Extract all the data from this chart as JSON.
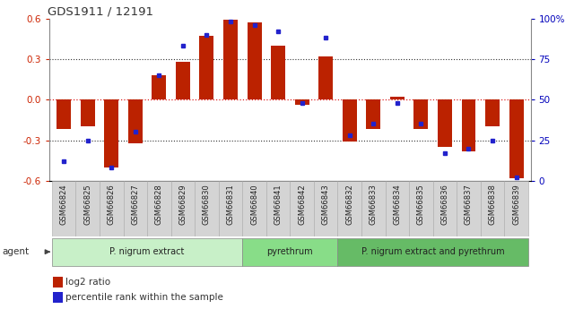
{
  "title": "GDS1911 / 12191",
  "samples": [
    "GSM66824",
    "GSM66825",
    "GSM66826",
    "GSM66827",
    "GSM66828",
    "GSM66829",
    "GSM66830",
    "GSM66831",
    "GSM66840",
    "GSM66841",
    "GSM66842",
    "GSM66843",
    "GSM66832",
    "GSM66833",
    "GSM66834",
    "GSM66835",
    "GSM66836",
    "GSM66837",
    "GSM66838",
    "GSM66839"
  ],
  "log2_ratio": [
    -0.22,
    -0.2,
    -0.5,
    -0.32,
    0.18,
    0.28,
    0.47,
    0.59,
    0.57,
    0.4,
    -0.04,
    0.32,
    -0.31,
    -0.22,
    0.02,
    -0.22,
    -0.35,
    -0.38,
    -0.2,
    -0.58
  ],
  "percentile_rank": [
    12,
    25,
    8,
    30,
    65,
    83,
    90,
    98,
    96,
    92,
    48,
    88,
    28,
    35,
    48,
    35,
    17,
    20,
    25,
    2
  ],
  "groups": [
    {
      "label": "P. nigrum extract",
      "start": 0,
      "end": 8,
      "color": "#c8f0c8"
    },
    {
      "label": "pyrethrum",
      "start": 8,
      "end": 12,
      "color": "#88dd88"
    },
    {
      "label": "P. nigrum extract and pyrethrum",
      "start": 12,
      "end": 20,
      "color": "#66bb66"
    }
  ],
  "bar_color": "#bb2200",
  "dot_color": "#2222cc",
  "ylim": [
    -0.6,
    0.6
  ],
  "y2lim": [
    0,
    100
  ],
  "yticks": [
    -0.6,
    -0.3,
    0.0,
    0.3,
    0.6
  ],
  "y2ticks": [
    0,
    25,
    50,
    75,
    100
  ],
  "hlines": [
    -0.3,
    0.0,
    0.3
  ],
  "bg_color": "#ffffff",
  "tick_label_color_left": "#cc2200",
  "tick_label_color_right": "#0000bb",
  "xtick_bg": "#d4d4d4",
  "xtick_border": "#aaaaaa"
}
